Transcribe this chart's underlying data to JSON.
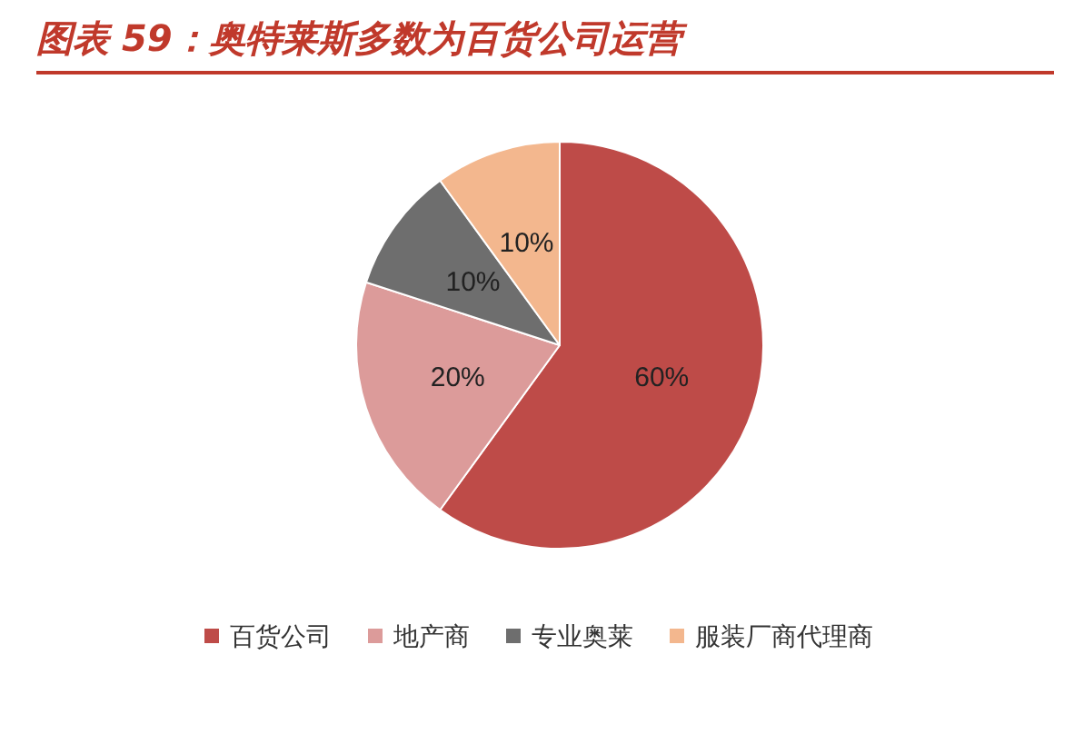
{
  "chart_data": {
    "type": "pie",
    "title": "图表 59：奥特莱斯多数为百货公司运营",
    "categories": [
      "百货公司",
      "地产商",
      "专业奥莱",
      "服装厂商代理商"
    ],
    "values": [
      60,
      20,
      10,
      10
    ],
    "colors": [
      "#be4b48",
      "#dc9b9a",
      "#6e6e6e",
      "#f3b78e"
    ],
    "value_labels": [
      "60%",
      "20%",
      "10%",
      "10%"
    ],
    "legend": "bottom"
  }
}
